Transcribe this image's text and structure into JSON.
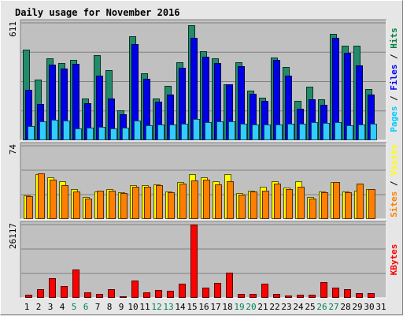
{
  "chart_data": {
    "title": "Daily usage for November 2016",
    "type": "bar",
    "days": [
      "1",
      "2",
      "3",
      "4",
      "5",
      "6",
      "7",
      "8",
      "9",
      "10",
      "11",
      "12",
      "13",
      "14",
      "15",
      "16",
      "17",
      "18",
      "19",
      "20",
      "21",
      "22",
      "23",
      "24",
      "25",
      "26",
      "27",
      "28",
      "29",
      "30",
      "31"
    ],
    "weekend_days": [
      "5",
      "6",
      "12",
      "13",
      "19",
      "20",
      "26",
      "27"
    ],
    "panels": [
      {
        "key": "hits_files_pages",
        "max_label": "611",
        "ymax": 611,
        "right_label": [
          "Pages",
          "Files",
          "Hits"
        ],
        "right_label_colors": [
          "#00ccff",
          "#0000ff",
          "#008040"
        ],
        "series": [
          {
            "name": "Hits",
            "color": "#228B6B",
            "values": [
              470,
              316,
              427,
              401,
              419,
              217,
              441,
              363,
              157,
              540,
              350,
              218,
              282,
              405,
              599,
              463,
              427,
              293,
              405,
              260,
              223,
              430,
              383,
              207,
              277,
              215,
              554,
              491,
              491,
              266,
              0
            ]
          },
          {
            "name": "Files",
            "color": "#0000e6",
            "values": [
              263,
              189,
              395,
              374,
              397,
              193,
              335,
              217,
              136,
              500,
              320,
              201,
              236,
              378,
              535,
              435,
              403,
              290,
              387,
              243,
              203,
              417,
              338,
              163,
              213,
              185,
              535,
              457,
              390,
              237,
              0
            ]
          },
          {
            "name": "Pages",
            "color": "#33ccff",
            "values": [
              72,
              98,
              106,
              101,
              62,
              66,
              70,
              60,
              66,
              103,
              77,
              83,
              80,
              88,
              112,
              93,
              98,
              97,
              87,
              80,
              81,
              82,
              88,
              88,
              95,
              92,
              93,
              78,
              82,
              86,
              0
            ]
          }
        ]
      },
      {
        "key": "visits_sites",
        "max_label": "74",
        "ymax": 74,
        "right_label": [
          "Sites",
          "Visits"
        ],
        "right_label_colors": [
          "#ff8000",
          "#ffff00"
        ],
        "series": [
          {
            "name": "Visits",
            "color": "#ffff00",
            "values": [
              24,
              45,
              42,
              38,
              30,
              22,
              28,
              30,
              27,
              34,
              34,
              35,
              28,
              37,
              45,
              42,
              38,
              45,
              26,
              29,
              33,
              38,
              32,
              38,
              22,
              28,
              37,
              28,
              29,
              30,
              0
            ]
          },
          {
            "name": "Sites",
            "color": "#ff8000",
            "values": [
              23,
              46,
              40,
              34,
              28,
              21,
              29,
              29,
              26,
              33,
              33,
              34,
              27,
              36,
              39,
              40,
              35,
              38,
              25,
              28,
              29,
              36,
              30,
              33,
              21,
              27,
              37,
              27,
              36,
              30,
              0
            ]
          }
        ]
      },
      {
        "key": "kbytes",
        "max_label": "26117",
        "ymax": 26117,
        "right_label": [
          "KBytes"
        ],
        "right_label_colors": [
          "#ff0000"
        ],
        "series": [
          {
            "name": "KBytes",
            "color": "#ff0000",
            "values": [
              1200,
              3000,
              7000,
              4300,
              10200,
              1900,
              1300,
              3100,
              700,
              6300,
              2100,
              2700,
              2600,
              5100,
              26117,
              3700,
              5300,
              8900,
              1500,
              1500,
              5100,
              1300,
              800,
              1100,
              1000,
              5700,
              3700,
              3200,
              1700,
              1800,
              0
            ]
          }
        ]
      }
    ],
    "colors": {
      "plot_bg": "#c0c0c0",
      "grid": "#808080",
      "title": "#0000ff",
      "weekday_label": "#000000",
      "weekend_label": "#00805c"
    }
  }
}
